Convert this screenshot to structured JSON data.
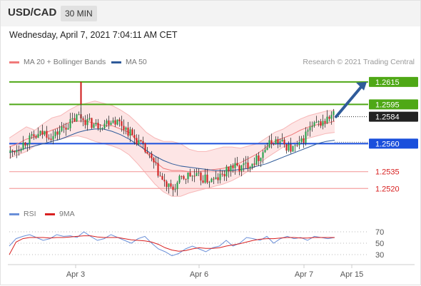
{
  "header": {
    "pair": "USD/CAD",
    "timeframe": "30 MIN"
  },
  "datetime": "Wednesday, April 7, 2021 7:04:11 AM CET",
  "legend": {
    "bb": {
      "label": "MA 20 + Bollinger Bands",
      "color": "#f07a7a"
    },
    "ma50": {
      "label": "MA 50",
      "color": "#2f5b9a"
    }
  },
  "credit": "Research © 2021 Trading Central",
  "rsi_legend": {
    "rsi": {
      "label": "RSI",
      "color": "#6a8fd8"
    },
    "ma9": {
      "label": "9MA",
      "color": "#d82020"
    }
  },
  "chart_data": [
    {
      "type": "candlestick",
      "title": "USD/CAD 30 MIN",
      "x_ticks": [
        "Apr 3",
        "Apr 6",
        "Apr 7",
        "Apr 15"
      ],
      "ylim": [
        1.2503,
        1.2627
      ],
      "current_price": 1.2584,
      "candle_colors": {
        "up": "#27a24b",
        "down": "#d02020"
      },
      "levels": [
        {
          "label": "1.2615",
          "value": 1.2615,
          "kind": "resistance",
          "color": "#4fa816",
          "line": true
        },
        {
          "label": "1.2595",
          "value": 1.2595,
          "kind": "resistance",
          "color": "#4fa816",
          "line": true
        },
        {
          "label": "1.2584",
          "value": 1.2584,
          "kind": "last-price",
          "color": "#222222",
          "line": false
        },
        {
          "label": "1.2560",
          "value": 1.256,
          "kind": "pivot",
          "color": "#1a4fdc",
          "line": true
        },
        {
          "label": "1.2535",
          "value": 1.2535,
          "kind": "support",
          "color": "#f5a0a0",
          "line": true
        },
        {
          "label": "1.2520",
          "value": 1.252,
          "kind": "support",
          "color": "#f5a0a0",
          "line": true
        }
      ],
      "arrow": {
        "direction": "up",
        "target": 1.2615,
        "color": "#2f5b9a"
      },
      "series": [
        {
          "name": "MA 20 + Bollinger Bands",
          "upper": [
            1.2565,
            1.257,
            1.2575,
            1.2572,
            1.2578,
            1.2583,
            1.2585,
            1.259,
            1.2594,
            1.2596,
            1.2598,
            1.2596,
            1.2594,
            1.259,
            1.2585,
            1.2578,
            1.257,
            1.2565,
            1.2562,
            1.2562,
            1.256,
            1.2555,
            1.2553,
            1.2553,
            1.2555,
            1.2557,
            1.2557,
            1.2556,
            1.2558,
            1.256,
            1.2565,
            1.257,
            1.2573,
            1.2578,
            1.2582,
            1.2585,
            1.2587,
            1.2589,
            1.259
          ],
          "middle": [
            1.2557,
            1.256,
            1.2564,
            1.2566,
            1.2569,
            1.2572,
            1.2575,
            1.2579,
            1.258,
            1.258,
            1.2578,
            1.2576,
            1.2576,
            1.2573,
            1.257,
            1.2562,
            1.2552,
            1.2544,
            1.2538,
            1.2536,
            1.2536,
            1.2535,
            1.2535,
            1.2536,
            1.2537,
            1.2538,
            1.254,
            1.2543,
            1.2547,
            1.2551,
            1.2557,
            1.2562,
            1.2565,
            1.2568,
            1.2572,
            1.2575,
            1.2577,
            1.2578,
            1.258
          ],
          "lower": [
            1.2547,
            1.255,
            1.2553,
            1.2558,
            1.256,
            1.2562,
            1.2564,
            1.2566,
            1.2567,
            1.2565,
            1.2562,
            1.256,
            1.2558,
            1.2555,
            1.255,
            1.2542,
            1.2533,
            1.2524,
            1.2517,
            1.2513,
            1.2513,
            1.2516,
            1.2518,
            1.252,
            1.2522,
            1.2524,
            1.2527,
            1.2531,
            1.2536,
            1.2541,
            1.2547,
            1.2552,
            1.2557,
            1.256,
            1.2563,
            1.2565,
            1.2567,
            1.2569,
            1.257
          ]
        },
        {
          "name": "MA 50",
          "values": [
            1.2552,
            1.2554,
            1.2556,
            1.2558,
            1.256,
            1.2562,
            1.2564,
            1.2567,
            1.257,
            1.2572,
            1.2573,
            1.2573,
            1.2571,
            1.2568,
            1.2564,
            1.2559,
            1.2554,
            1.2549,
            1.2545,
            1.2542,
            1.254,
            1.2539,
            1.2538,
            1.2537,
            1.2536,
            1.2536,
            1.2536,
            1.2537,
            1.2538,
            1.254,
            1.2542,
            1.2545,
            1.2548,
            1.2551,
            1.2554,
            1.2557,
            1.256,
            1.2562,
            1.2563
          ]
        }
      ],
      "close_path": [
        1.2552,
        1.2557,
        1.2563,
        1.2566,
        1.257,
        1.2566,
        1.2573,
        1.2578,
        1.2585,
        1.258,
        1.2576,
        1.2578,
        1.2582,
        1.2578,
        1.257,
        1.2562,
        1.2552,
        1.254,
        1.2525,
        1.2518,
        1.2528,
        1.2532,
        1.253,
        1.2528,
        1.2527,
        1.2532,
        1.254,
        1.2538,
        1.2542,
        1.2546,
        1.2556,
        1.2563,
        1.256,
        1.2555,
        1.2558,
        1.2572,
        1.2577,
        1.258,
        1.2586
      ]
    },
    {
      "type": "line",
      "title": "RSI",
      "y_ticks": [
        30,
        50,
        70
      ],
      "ylim": [
        15,
        85
      ],
      "series": [
        {
          "name": "RSI",
          "values": [
            45,
            58,
            62,
            65,
            60,
            55,
            58,
            65,
            62,
            63,
            60,
            70,
            62,
            55,
            58,
            65,
            60,
            55,
            50,
            58,
            62,
            50,
            40,
            35,
            28,
            32,
            40,
            45,
            40,
            35,
            42,
            45,
            55,
            45,
            50,
            60,
            58,
            55,
            62,
            50,
            58,
            62,
            58,
            60,
            55,
            62,
            60,
            58,
            60
          ]
        },
        {
          "name": "9MA",
          "values": [
            30,
            52,
            58,
            60,
            60,
            60,
            59,
            60,
            60,
            61,
            62,
            63,
            63,
            61,
            60,
            60,
            60,
            58,
            56,
            55,
            54,
            52,
            48,
            42,
            38,
            36,
            37,
            40,
            42,
            41,
            41,
            42,
            45,
            47,
            49,
            52,
            55,
            57,
            58,
            58,
            59,
            60,
            60,
            59,
            59,
            60,
            60,
            60,
            60
          ]
        }
      ]
    }
  ]
}
